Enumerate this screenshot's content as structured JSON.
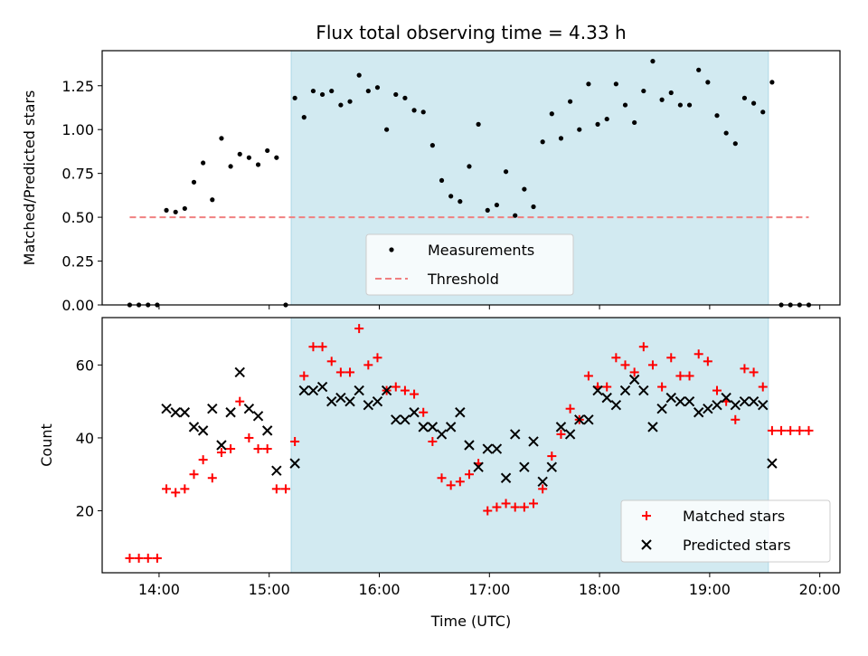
{
  "figure": {
    "title": "Flux total observing time = 4.33 h"
  },
  "chart_data": [
    {
      "type": "scatter",
      "ylabel": "Matched/Predicted stars",
      "ylim": [
        0,
        1.45
      ],
      "xlim": [
        "13:29",
        "20:11"
      ],
      "yticks": [
        0,
        0.25,
        0.5,
        0.75,
        1.0,
        1.25
      ],
      "ytick_labels": [
        "0.00",
        "0.25",
        "0.50",
        "0.75",
        "1.00",
        "1.25"
      ],
      "xticks": [
        "14:00",
        "15:00",
        "16:00",
        "17:00",
        "18:00",
        "19:00",
        "20:00"
      ],
      "shaded_span": [
        "15:12",
        "19:32"
      ],
      "shade_color": "#add8e6",
      "legend": {
        "position": "lower-center",
        "entries": [
          "Measurements",
          "Threshold"
        ]
      },
      "threshold": {
        "name": "Threshold",
        "value": 0.5,
        "x_range": [
          "13:44",
          "19:54"
        ],
        "color": "#f08080"
      },
      "series": [
        {
          "name": "Measurements",
          "color": "#000000",
          "x": [
            "13:44",
            "13:49",
            "13:54",
            "13:59",
            "14:04",
            "14:09",
            "14:14",
            "14:19",
            "14:24",
            "14:29",
            "14:34",
            "14:39",
            "14:44",
            "14:49",
            "14:54",
            "14:59",
            "15:04",
            "15:09",
            "15:14",
            "15:19",
            "15:24",
            "15:29",
            "15:34",
            "15:39",
            "15:44",
            "15:49",
            "15:54",
            "15:59",
            "16:04",
            "16:09",
            "16:14",
            "16:19",
            "16:24",
            "16:29",
            "16:34",
            "16:39",
            "16:44",
            "16:49",
            "16:54",
            "16:59",
            "17:04",
            "17:09",
            "17:14",
            "17:19",
            "17:24",
            "17:29",
            "17:34",
            "17:39",
            "17:44",
            "17:49",
            "17:54",
            "17:59",
            "18:04",
            "18:09",
            "18:14",
            "18:19",
            "18:24",
            "18:29",
            "18:34",
            "18:39",
            "18:44",
            "18:49",
            "18:54",
            "18:59",
            "19:04",
            "19:09",
            "19:14",
            "19:19",
            "19:24",
            "19:29",
            "19:34",
            "19:39",
            "19:44",
            "19:49",
            "19:54"
          ],
          "y": [
            0.0,
            0.0,
            0.0,
            0.0,
            0.54,
            0.53,
            0.55,
            0.7,
            0.81,
            0.6,
            0.95,
            0.79,
            0.86,
            0.84,
            0.8,
            0.88,
            0.84,
            0.0,
            1.18,
            1.07,
            1.22,
            1.2,
            1.22,
            1.14,
            1.16,
            1.31,
            1.22,
            1.24,
            1.0,
            1.2,
            1.18,
            1.11,
            1.1,
            0.91,
            0.71,
            0.62,
            0.59,
            0.79,
            1.03,
            0.54,
            0.57,
            0.76,
            0.51,
            0.66,
            0.56,
            0.93,
            1.09,
            0.95,
            1.16,
            1.0,
            1.26,
            1.03,
            1.06,
            1.26,
            1.14,
            1.04,
            1.22,
            1.39,
            1.17,
            1.21,
            1.14,
            1.14,
            1.34,
            1.27,
            1.08,
            0.98,
            0.92,
            1.18,
            1.15,
            1.1,
            1.27,
            0.0,
            0.0,
            0.0,
            0.0
          ]
        }
      ]
    },
    {
      "type": "scatter",
      "xlabel": "Time (UTC)",
      "ylabel": "Count",
      "ylim": [
        3,
        73
      ],
      "xlim": [
        "13:29",
        "20:11"
      ],
      "yticks": [
        20,
        40,
        60
      ],
      "ytick_labels": [
        "20",
        "40",
        "60"
      ],
      "xticks": [
        "14:00",
        "15:00",
        "16:00",
        "17:00",
        "18:00",
        "19:00",
        "20:00"
      ],
      "shaded_span": [
        "15:12",
        "19:32"
      ],
      "shade_color": "#add8e6",
      "legend": {
        "position": "lower-right",
        "entries": [
          "Matched stars",
          "Predicted stars"
        ]
      },
      "series": [
        {
          "name": "Matched stars",
          "marker": "plus",
          "color": "#ff0000",
          "x": [
            "13:44",
            "13:49",
            "13:54",
            "13:59",
            "14:04",
            "14:09",
            "14:14",
            "14:19",
            "14:24",
            "14:29",
            "14:34",
            "14:39",
            "14:44",
            "14:49",
            "14:54",
            "14:59",
            "15:04",
            "15:09",
            "15:14",
            "15:19",
            "15:24",
            "15:29",
            "15:34",
            "15:39",
            "15:44",
            "15:49",
            "15:54",
            "15:59",
            "16:04",
            "16:09",
            "16:14",
            "16:19",
            "16:24",
            "16:29",
            "16:34",
            "16:39",
            "16:44",
            "16:49",
            "16:54",
            "16:59",
            "17:04",
            "17:09",
            "17:14",
            "17:19",
            "17:24",
            "17:29",
            "17:34",
            "17:39",
            "17:44",
            "17:49",
            "17:54",
            "17:59",
            "18:04",
            "18:09",
            "18:14",
            "18:19",
            "18:24",
            "18:29",
            "18:34",
            "18:39",
            "18:44",
            "18:49",
            "18:54",
            "18:59",
            "19:04",
            "19:09",
            "19:14",
            "19:19",
            "19:24",
            "19:29",
            "19:34",
            "19:39",
            "19:44",
            "19:49",
            "19:54"
          ],
          "y": [
            7,
            7,
            7,
            7,
            26,
            25,
            26,
            30,
            34,
            29,
            36,
            37,
            50,
            40,
            37,
            37,
            26,
            26,
            39,
            57,
            65,
            65,
            61,
            58,
            58,
            70,
            60,
            62,
            53,
            54,
            53,
            52,
            47,
            39,
            29,
            27,
            28,
            30,
            33,
            20,
            21,
            22,
            21,
            21,
            22,
            26,
            35,
            41,
            48,
            45,
            57,
            54,
            54,
            62,
            60,
            58,
            65,
            60,
            54,
            62,
            57,
            57,
            63,
            61,
            53,
            50,
            45,
            59,
            58,
            54,
            42,
            42,
            42,
            42,
            42
          ]
        },
        {
          "name": "Predicted stars",
          "marker": "x",
          "color": "#000000",
          "x": [
            "14:04",
            "14:09",
            "14:14",
            "14:19",
            "14:24",
            "14:29",
            "14:34",
            "14:39",
            "14:44",
            "14:49",
            "14:54",
            "14:59",
            "15:04",
            "15:14",
            "15:19",
            "15:24",
            "15:29",
            "15:34",
            "15:39",
            "15:44",
            "15:49",
            "15:54",
            "15:59",
            "16:04",
            "16:09",
            "16:14",
            "16:19",
            "16:24",
            "16:29",
            "16:34",
            "16:39",
            "16:44",
            "16:49",
            "16:54",
            "16:59",
            "17:04",
            "17:09",
            "17:14",
            "17:19",
            "17:24",
            "17:29",
            "17:34",
            "17:39",
            "17:44",
            "17:49",
            "17:54",
            "17:59",
            "18:04",
            "18:09",
            "18:14",
            "18:19",
            "18:24",
            "18:29",
            "18:34",
            "18:39",
            "18:44",
            "18:49",
            "18:54",
            "18:59",
            "19:04",
            "19:09",
            "19:14",
            "19:19",
            "19:24",
            "19:29",
            "19:34"
          ],
          "y": [
            48,
            47,
            47,
            43,
            42,
            48,
            38,
            47,
            58,
            48,
            46,
            42,
            31,
            33,
            53,
            53,
            54,
            50,
            51,
            50,
            53,
            49,
            50,
            53,
            45,
            45,
            47,
            43,
            43,
            41,
            43,
            47,
            38,
            32,
            37,
            37,
            29,
            41,
            32,
            39,
            28,
            32,
            43,
            41,
            45,
            45,
            53,
            51,
            49,
            53,
            56,
            53,
            43,
            48,
            51,
            50,
            50,
            47,
            48,
            49,
            51,
            49,
            50,
            50,
            49,
            33
          ]
        }
      ]
    }
  ]
}
